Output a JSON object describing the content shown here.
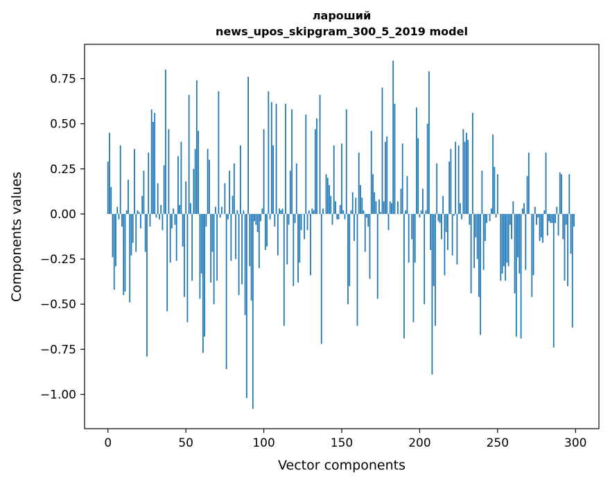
{
  "chart_data": {
    "type": "bar",
    "title": "лароший",
    "subtitle": "news_upos_skipgram_300_5_2019 model",
    "xlabel": "Vector components",
    "ylabel": "Components values",
    "xlim": [
      -15,
      315
    ],
    "ylim": [
      -1.19,
      0.94
    ],
    "xticks": [
      0,
      50,
      100,
      150,
      200,
      250,
      300
    ],
    "yticks": [
      {
        "value": 0.75,
        "label": "0.75"
      },
      {
        "value": 0.5,
        "label": "0.50"
      },
      {
        "value": 0.25,
        "label": "0.25"
      },
      {
        "value": 0.0,
        "label": "0.00"
      },
      {
        "value": -0.25,
        "label": "−0.25"
      },
      {
        "value": -0.5,
        "label": "−0.50"
      },
      {
        "value": -0.75,
        "label": "−0.75"
      },
      {
        "value": -1.0,
        "label": "−1.00"
      }
    ],
    "bar_color": "#1f77b4",
    "x": "0..299 (component index)",
    "values": [
      0.29,
      0.45,
      0.15,
      -0.24,
      -0.42,
      -0.29,
      0.04,
      -0.03,
      0.38,
      -0.07,
      -0.45,
      -0.43,
      0.02,
      0.19,
      -0.49,
      -0.23,
      -0.16,
      0.36,
      -0.21,
      0.02,
      0.01,
      -0.08,
      0.1,
      0.24,
      -0.21,
      -0.79,
      0.34,
      -0.07,
      0.58,
      0.51,
      0.56,
      -0.02,
      0.17,
      -0.03,
      0.05,
      -0.09,
      0.27,
      0.8,
      -0.54,
      0.47,
      -0.27,
      -0.08,
      0.03,
      -0.06,
      -0.26,
      0.32,
      0.05,
      0.4,
      -0.18,
      -0.46,
      0.18,
      -0.6,
      0.66,
      0.06,
      -0.37,
      0.25,
      0.36,
      0.74,
      0.46,
      -0.47,
      -0.33,
      -0.77,
      -0.68,
      -0.07,
      0.36,
      0.3,
      -0.38,
      -0.21,
      -0.5,
      0.04,
      -0.37,
      0.68,
      -0.02,
      0.04,
      0.0,
      0.17,
      -0.86,
      -0.03,
      0.24,
      -0.26,
      0.1,
      0.28,
      -0.25,
      0.02,
      -0.45,
      0.38,
      -0.39,
      0.02,
      -0.56,
      -1.02,
      0.76,
      -0.29,
      -0.48,
      -1.08,
      -0.04,
      -0.06,
      -0.1,
      -0.3,
      -0.04,
      0.03,
      0.47,
      -0.2,
      -0.18,
      0.68,
      -0.03,
      0.62,
      0.38,
      -0.07,
      0.61,
      -0.23,
      0.03,
      0.02,
      0.03,
      -0.62,
      0.61,
      -0.28,
      -0.06,
      0.24,
      0.58,
      -0.4,
      -0.05,
      0.28,
      -0.38,
      -0.27,
      -0.09,
      0.0,
      -0.14,
      0.55,
      -0.09,
      0.02,
      -0.34,
      0.03,
      0.02,
      0.47,
      0.53,
      0.0,
      0.66,
      -0.72,
      0.03,
      0.0,
      0.22,
      0.2,
      0.16,
      0.1,
      -0.06,
      0.38,
      0.07,
      -0.03,
      -0.03,
      0.05,
      0.39,
      0.02,
      -0.03,
      0.58,
      -0.5,
      -0.4,
      0.02,
      0.12,
      -0.15,
      0.09,
      -0.62,
      0.34,
      0.16,
      0.09,
      0.02,
      -0.21,
      -0.02,
      -0.07,
      -0.36,
      0.46,
      0.22,
      0.12,
      0.07,
      -0.47,
      0.08,
      0.01,
      0.7,
      0.07,
      0.4,
      0.43,
      -0.09,
      0.07,
      0.06,
      0.85,
      0.61,
      0.0,
      0.07,
      0.0,
      0.14,
      0.39,
      -0.69,
      0.02,
      0.21,
      -0.27,
      0.0,
      -0.14,
      -0.6,
      -0.27,
      0.59,
      0.42,
      -0.02,
      0.02,
      0.14,
      -0.5,
      0.02,
      0.5,
      0.79,
      -0.2,
      -0.89,
      -0.4,
      -0.62,
      0.28,
      -0.04,
      -0.05,
      -0.14,
      0.1,
      -0.34,
      -0.1,
      -0.2,
      0.29,
      0.36,
      -0.23,
      -0.01,
      0.4,
      -0.28,
      0.38,
      0.06,
      -0.03,
      0.47,
      0.4,
      0.45,
      0.41,
      -0.06,
      -0.44,
      0.56,
      -0.3,
      -0.13,
      -0.25,
      -0.46,
      -0.67,
      0.24,
      -0.31,
      -0.15,
      -0.05,
      0.0,
      -0.04,
      0.03,
      0.44,
      0.26,
      -0.02,
      0.22,
      0.0,
      -0.37,
      -0.33,
      -0.29,
      -0.37,
      -0.27,
      -0.29,
      -0.06,
      -0.14,
      0.07,
      -0.44,
      -0.68,
      -0.24,
      -0.33,
      -0.69,
      0.03,
      0.06,
      -0.31,
      0.21,
      0.34,
      0.0,
      -0.46,
      -0.34,
      0.04,
      -0.06,
      -0.02,
      -0.15,
      -0.13,
      -0.16,
      0.02,
      0.34,
      -0.12,
      -0.04,
      -0.05,
      -0.05,
      -0.74,
      -0.05,
      0.04,
      -0.12,
      0.23,
      0.22,
      -0.14,
      -0.37,
      -0.06,
      -0.4,
      0.22,
      -0.22,
      -0.63,
      -0.07
    ]
  }
}
